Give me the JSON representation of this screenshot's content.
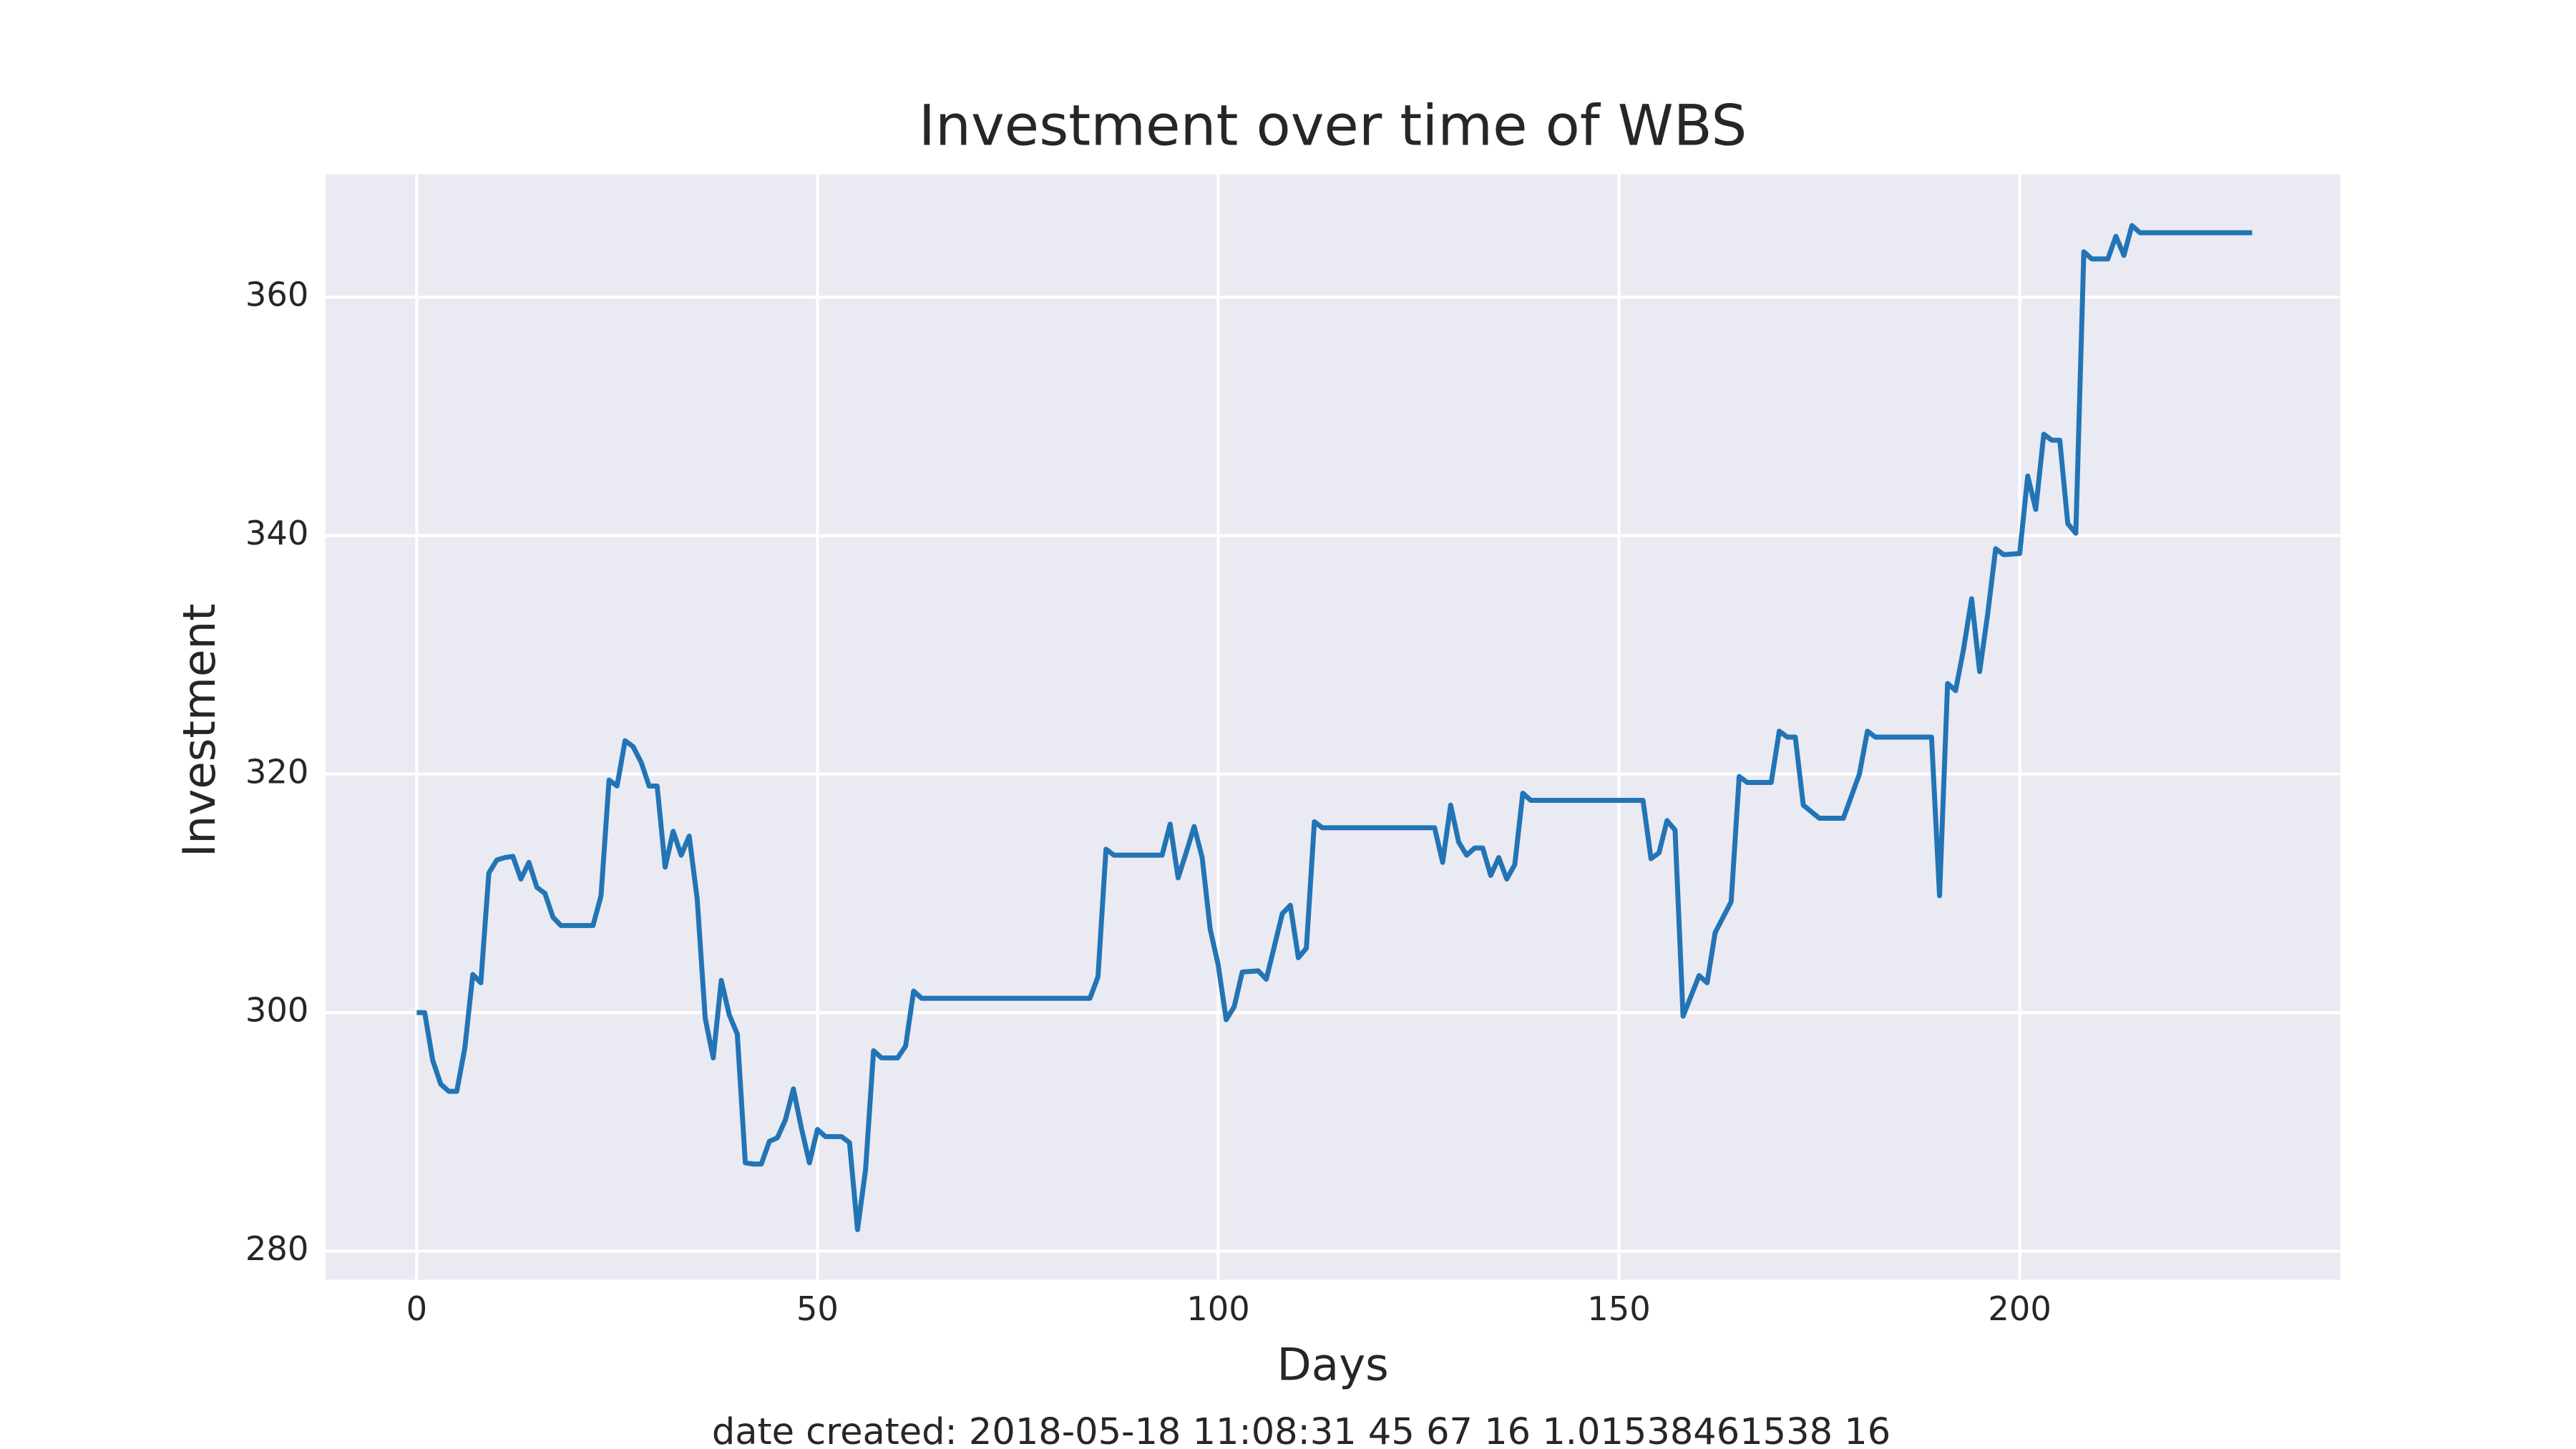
{
  "chart_data": {
    "type": "line",
    "title": "Investment over time of WBS",
    "x_label": "Days",
    "y_label": "Investment",
    "footnote": "date created: 2018-05-18 11:08:31 45 67 16 1.01538461538 16",
    "x": [
      0,
      1,
      2,
      3,
      4,
      5,
      6,
      7,
      8,
      9,
      10,
      11,
      12,
      13,
      14,
      15,
      16,
      17,
      18,
      19,
      22,
      23,
      24,
      25,
      26,
      27,
      28,
      29,
      30,
      31,
      32,
      33,
      34,
      35,
      36,
      37,
      38,
      39,
      40,
      41,
      42,
      43,
      44,
      45,
      46,
      47,
      48,
      49,
      50,
      51,
      53,
      54,
      55,
      56,
      57,
      58,
      60,
      61,
      62,
      63,
      84,
      85,
      86,
      87,
      93,
      94,
      95,
      96,
      97,
      98,
      99,
      100,
      101,
      102,
      103,
      105,
      106,
      108,
      109,
      110,
      111,
      112,
      113,
      127,
      128,
      129,
      130,
      131,
      132,
      133,
      134,
      135,
      136,
      137,
      138,
      139,
      153,
      154,
      155,
      156,
      157,
      158,
      160,
      161,
      162,
      164,
      165,
      166,
      169,
      170,
      171,
      172,
      173,
      175,
      178,
      180,
      181,
      182,
      189,
      190,
      191,
      192,
      193,
      194,
      195,
      196,
      197,
      198,
      200,
      201,
      202,
      203,
      204,
      205,
      206,
      207,
      208,
      209,
      211,
      212,
      213,
      214,
      215,
      229
    ],
    "series": [
      {
        "name": "Investment",
        "color": "#2274b5",
        "values": [
          300,
          300,
          296,
          294,
          293.4,
          293.4,
          297,
          303.2,
          302.5,
          311.7,
          312.8,
          313,
          313.1,
          311.2,
          312.6,
          310.5,
          310,
          308,
          307.3,
          307.3,
          307.3,
          309.8,
          319.5,
          319,
          322.8,
          322.3,
          321,
          319,
          319,
          312.2,
          315.2,
          313.2,
          314.8,
          309.5,
          299.5,
          296.2,
          302.7,
          299.8,
          298.2,
          287.4,
          287.3,
          287.3,
          289.2,
          289.5,
          291,
          293.6,
          290.3,
          287.4,
          290.2,
          289.6,
          289.6,
          289.1,
          281.8,
          286.8,
          296.8,
          296.2,
          296.2,
          297.2,
          301.8,
          301.2,
          301.2,
          303,
          313.7,
          313.2,
          313.2,
          315.8,
          311.3,
          313.4,
          315.6,
          313,
          307,
          304,
          299.4,
          300.5,
          303.4,
          303.5,
          302.8,
          308.3,
          309,
          304.6,
          305.4,
          316,
          315.5,
          315.5,
          312.6,
          317.4,
          314.3,
          313.2,
          313.8,
          313.8,
          311.5,
          313,
          311.2,
          312.4,
          318.4,
          317.8,
          317.8,
          312.9,
          313.4,
          316.1,
          315.3,
          299.7,
          303.1,
          302.5,
          306.7,
          309.3,
          319.8,
          319.3,
          319.3,
          323.6,
          323.1,
          323.1,
          317.4,
          316.3,
          316.3,
          320,
          323.6,
          323.1,
          323.1,
          309.8,
          327.6,
          327,
          330.5,
          334.7,
          328.6,
          333.4,
          338.9,
          338.4,
          338.5,
          345,
          342.2,
          348.5,
          348,
          348,
          341,
          340.2,
          363.8,
          363.2,
          363.2,
          365.1,
          363.5,
          366,
          365.4,
          365.4
        ]
      }
    ],
    "xlim": [
      -11.4,
      240
    ],
    "ylim": [
      277.6,
      370.3
    ],
    "xticks": [
      0,
      50,
      100,
      150,
      200
    ],
    "yticks": [
      280,
      300,
      320,
      340,
      360
    ],
    "grid": true
  }
}
